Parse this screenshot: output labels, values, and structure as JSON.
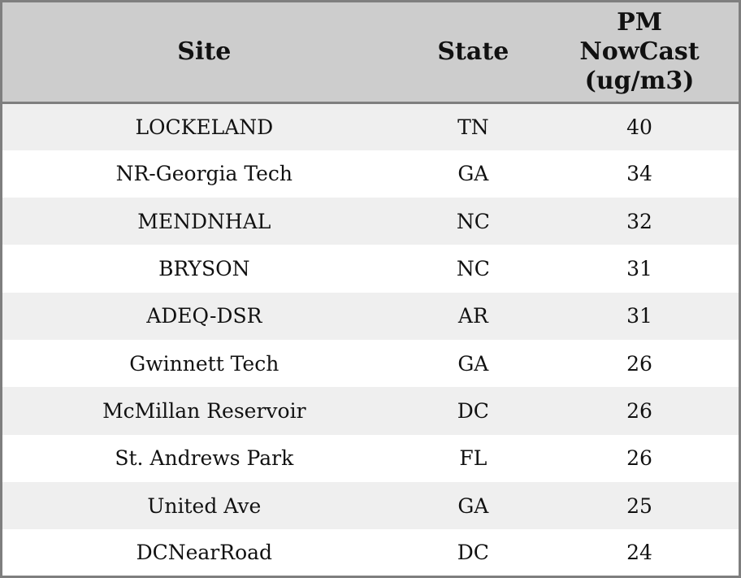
{
  "table": {
    "columns": [
      {
        "label": "Site"
      },
      {
        "label": "State"
      },
      {
        "label": "PM NowCast (ug/m3)"
      }
    ],
    "rows": [
      {
        "site": "LOCKELAND",
        "state": "TN",
        "pm_nowcast": "40"
      },
      {
        "site": "NR-Georgia Tech",
        "state": "GA",
        "pm_nowcast": "34"
      },
      {
        "site": "MENDNHAL",
        "state": "NC",
        "pm_nowcast": "32"
      },
      {
        "site": "BRYSON",
        "state": "NC",
        "pm_nowcast": "31"
      },
      {
        "site": "ADEQ-DSR",
        "state": "AR",
        "pm_nowcast": "31"
      },
      {
        "site": "Gwinnett Tech",
        "state": "GA",
        "pm_nowcast": "26"
      },
      {
        "site": "McMillan Reservoir",
        "state": "DC",
        "pm_nowcast": "26"
      },
      {
        "site": "St. Andrews Park",
        "state": "FL",
        "pm_nowcast": "26"
      },
      {
        "site": "United Ave",
        "state": "GA",
        "pm_nowcast": "25"
      },
      {
        "site": "DCNearRoad",
        "state": "DC",
        "pm_nowcast": "24"
      }
    ]
  },
  "colors": {
    "header_background": "#cdcdcd",
    "stripe_row_background": "#efefef",
    "plain_row_background": "#ffffff",
    "border": "#7f7f7f",
    "text": "#111111"
  },
  "chart_data": {
    "type": "table",
    "title": "",
    "columns": [
      "Site",
      "State",
      "PM NowCast (ug/m3)"
    ],
    "rows": [
      [
        "LOCKELAND",
        "TN",
        40
      ],
      [
        "NR-Georgia Tech",
        "GA",
        34
      ],
      [
        "MENDNHAL",
        "NC",
        32
      ],
      [
        "BRYSON",
        "NC",
        31
      ],
      [
        "ADEQ-DSR",
        "AR",
        31
      ],
      [
        "Gwinnett Tech",
        "GA",
        26
      ],
      [
        "McMillan Reservoir",
        "DC",
        26
      ],
      [
        "St. Andrews Park",
        "FL",
        26
      ],
      [
        "United Ave",
        "GA",
        25
      ],
      [
        "DCNearRoad",
        "DC",
        24
      ]
    ],
    "layout_hints": {
      "header_shaded": true,
      "zebra_striping": true,
      "cell_alignment": "center",
      "sort": "pm_nowcast descending"
    }
  }
}
